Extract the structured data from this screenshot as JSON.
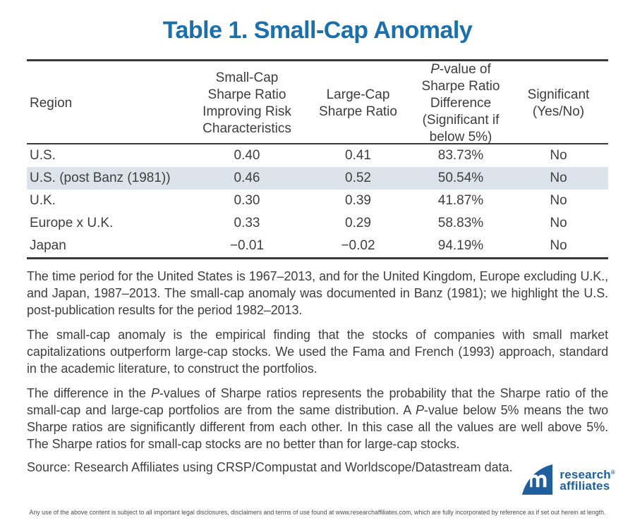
{
  "title": "Table 1. Small-Cap Anomaly",
  "chart_data": {
    "type": "table",
    "title": "Table 1. Small-Cap Anomaly",
    "columns": [
      "Region",
      "Small-Cap Sharpe Ratio Improving Risk Characteristics",
      "Large-Cap Sharpe Ratio",
      "P-value of Sharpe Ratio Difference (Significant if below 5%)",
      "Significant (Yes/No)"
    ],
    "rows": [
      {
        "region": "U.S.",
        "small_cap_sharpe": "0.40",
        "large_cap_sharpe": "0.41",
        "p_value": "83.73%",
        "significant": "No"
      },
      {
        "region": "U.S. (post Banz (1981))",
        "small_cap_sharpe": "0.46",
        "large_cap_sharpe": "0.52",
        "p_value": "50.54%",
        "significant": "No"
      },
      {
        "region": "U.K.",
        "small_cap_sharpe": "0.30",
        "large_cap_sharpe": "0.39",
        "p_value": "41.87%",
        "significant": "No"
      },
      {
        "region": "Europe x U.K.",
        "small_cap_sharpe": "0.33",
        "large_cap_sharpe": "0.29",
        "p_value": "58.83%",
        "significant": "No"
      },
      {
        "region": "Japan",
        "small_cap_sharpe": "−0.01",
        "large_cap_sharpe": "−0.02",
        "p_value": "94.19%",
        "significant": "No"
      }
    ],
    "highlighted_row": "U.S. (post Banz (1981))"
  },
  "ui": {
    "header_lines": [
      [
        "Region"
      ],
      [
        "Small-Cap",
        "Sharpe Ratio",
        "Improving Risk",
        "Characteristics"
      ],
      [
        "Large-Cap",
        "Sharpe Ratio"
      ],
      [
        "P-value of",
        "Sharpe Ratio",
        "Difference",
        "(Significant if",
        "below 5%)"
      ],
      [
        "Significant",
        "(Yes/No)"
      ]
    ]
  },
  "notes": [
    "The time period for the United States is 1967–2013, and for the United Kingdom, Europe excluding U.K., and Japan, 1987–2013. The small-cap anomaly was documented in Banz (1981); we highlight the U.S. post-publication results for the period 1982–2013.",
    "The small-cap anomaly is the empirical finding that the stocks of companies with small market capitalizations outperform large-cap stocks. We used the Fama and French (1993) approach, standard in the academic literature, to construct the portfolios.",
    "The difference in the P-values of Sharpe ratios represents the probability that the Sharpe ratio of the small-cap and large-cap portfolios are from the same distribution. A P-value below 5% means the two Sharpe ratios are significantly different from each other. In this case all the values are well above 5%. The Sharpe ratios for small-cap stocks are no better than for large-cap stocks."
  ],
  "source": "Source: Research Affiliates using CRSP/Compustat and Worldscope/Datastream data.",
  "logo": {
    "line1": "research",
    "registered": "®",
    "line2": "affiliates"
  },
  "disclaimer": "Any use of the above content is subject to all important legal disclosures, disclaimers and terms of use found at www.researchaffiliates.com, which are fully incorporated by reference as if set out herein at length.",
  "colors": {
    "title_blue": "#1a6fad",
    "logo_blue": "#1f5f9e",
    "row_highlight": "#dce3ea",
    "rule": "#3a3a3a",
    "text": "#3f3f3f"
  }
}
